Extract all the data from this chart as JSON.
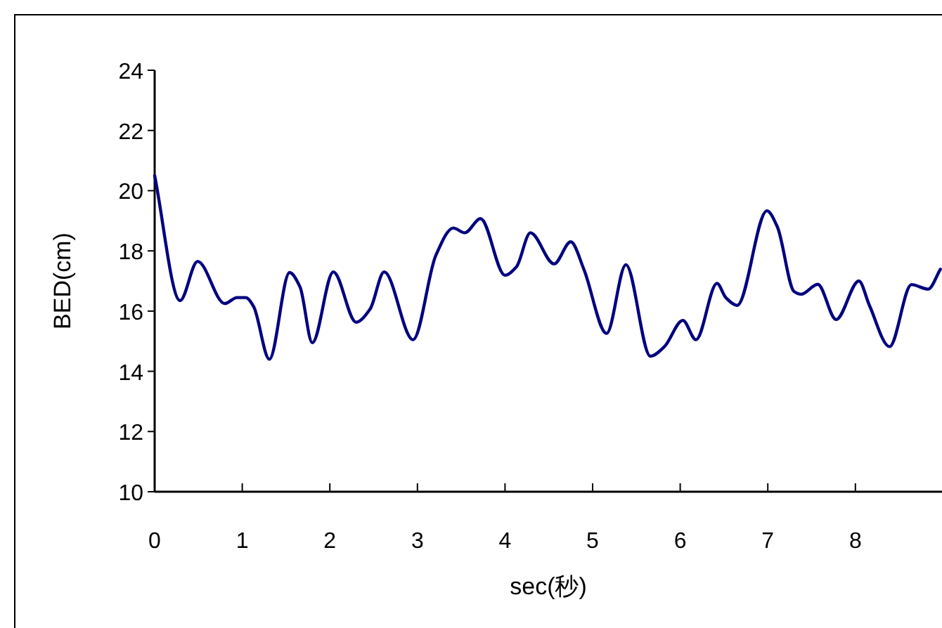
{
  "chart_data": {
    "type": "line",
    "xlabel": "sec(秒)",
    "ylabel": "BED(cm)",
    "xlim": [
      0,
      9
    ],
    "ylim": [
      10,
      24
    ],
    "xticks": [
      0,
      1,
      2,
      3,
      4,
      5,
      6,
      7,
      8
    ],
    "yticks": [
      10,
      12,
      14,
      16,
      18,
      20,
      22,
      24
    ],
    "grid": false,
    "marker": "none",
    "line_style": "solid",
    "x": [
      0,
      0.29,
      0.49,
      0.8,
      0.94,
      1.04,
      1.13,
      1.31,
      1.54,
      1.66,
      1.8,
      2.04,
      2.3,
      2.46,
      2.62,
      2.95,
      3.21,
      3.41,
      3.54,
      3.72,
      4.0,
      4.13,
      4.29,
      4.56,
      4.75,
      4.9,
      5.16,
      5.38,
      5.66,
      5.82,
      6.03,
      6.18,
      6.42,
      6.52,
      6.65,
      6.99,
      7.11,
      7.3,
      7.38,
      7.57,
      7.78,
      8.04,
      8.16,
      8.39,
      8.64,
      8.83,
      8.97
    ],
    "series": [
      {
        "color": "#000080",
        "values": [
          20.5,
          16.35,
          17.65,
          16.25,
          16.45,
          16.45,
          16.15,
          14.4,
          17.28,
          16.8,
          14.95,
          17.3,
          15.63,
          16.07,
          17.3,
          15.05,
          17.85,
          18.76,
          18.6,
          19.07,
          17.19,
          17.47,
          18.6,
          17.57,
          18.3,
          17.39,
          15.26,
          17.54,
          14.5,
          14.82,
          15.69,
          15.05,
          16.92,
          16.45,
          16.19,
          19.33,
          18.79,
          16.65,
          16.56,
          16.89,
          15.72,
          17.0,
          16.19,
          14.82,
          16.88,
          16.73,
          17.39
        ]
      }
    ]
  }
}
